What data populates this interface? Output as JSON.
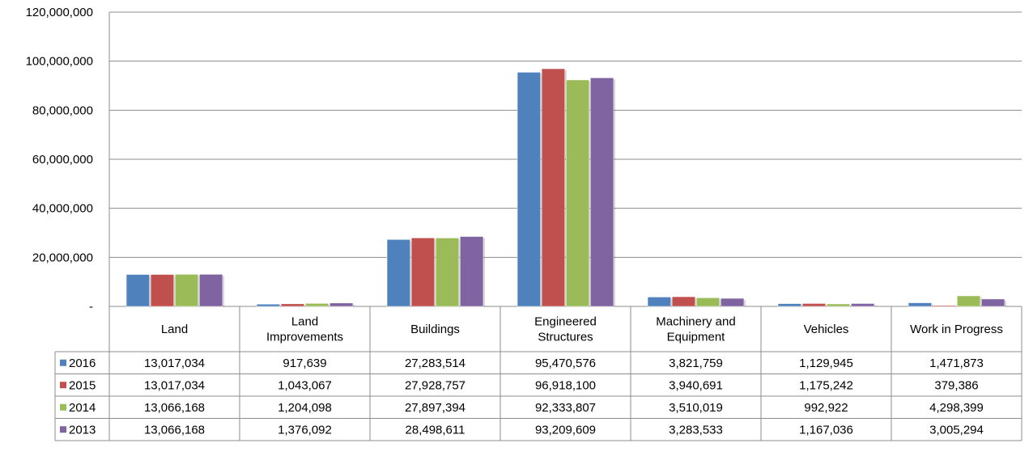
{
  "chart_data": {
    "type": "bar",
    "categories": [
      "Land",
      [
        "Land",
        "Improvements"
      ],
      "Buildings",
      [
        "Engineered",
        "Structures"
      ],
      [
        "Machinery and",
        "Equipment"
      ],
      "Vehicles",
      "Work in Progress"
    ],
    "series": [
      {
        "name": "2016",
        "color": "#4F81BD",
        "values": [
          13017034,
          917639,
          27283514,
          95470576,
          3821759,
          1129945,
          1471873
        ],
        "labels": [
          "13,017,034",
          "917,639",
          "27,283,514",
          "95,470,576",
          "3,821,759",
          "1,129,945",
          "1,471,873"
        ]
      },
      {
        "name": "2015",
        "color": "#C0504D",
        "values": [
          13017034,
          1043067,
          27928757,
          96918100,
          3940691,
          1175242,
          379386
        ],
        "labels": [
          "13,017,034",
          "1,043,067",
          "27,928,757",
          "96,918,100",
          "3,940,691",
          "1,175,242",
          "379,386"
        ]
      },
      {
        "name": "2014",
        "color": "#9BBB59",
        "values": [
          13066168,
          1204098,
          27897394,
          92333807,
          3510019,
          992922,
          4298399
        ],
        "labels": [
          "13,066,168",
          "1,204,098",
          "27,897,394",
          "92,333,807",
          "3,510,019",
          "992,922",
          "4,298,399"
        ]
      },
      {
        "name": "2013",
        "color": "#8064A2",
        "values": [
          13066168,
          1376092,
          28498611,
          93209609,
          3283533,
          1167036,
          3005294
        ],
        "labels": [
          "13,066,168",
          "1,376,092",
          "28,498,611",
          "93,209,609",
          "3,283,533",
          "1,167,036",
          "3,005,294"
        ]
      }
    ],
    "ylim": [
      0,
      120000000
    ],
    "yticks": [
      0,
      20000000,
      40000000,
      60000000,
      80000000,
      100000000,
      120000000
    ],
    "ytick_labels": [
      "-",
      "20,000,000",
      "40,000,000",
      "60,000,000",
      "80,000,000",
      "100,000,000",
      "120,000,000"
    ],
    "grid": true,
    "legend": "data-table"
  }
}
